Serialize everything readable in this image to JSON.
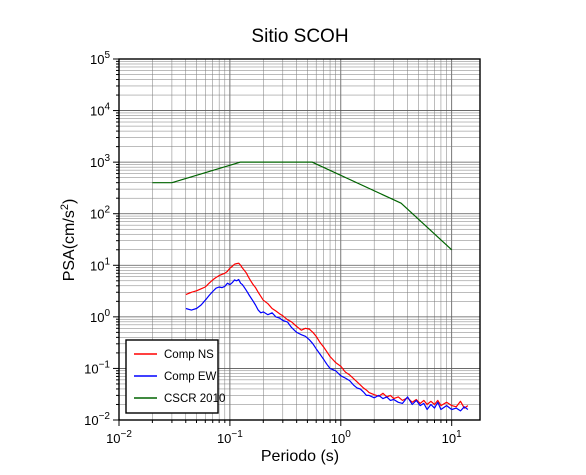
{
  "chart_data": {
    "type": "line",
    "title": "Sitio SCOH",
    "xlabel": "Periodo (s)",
    "ylabel_base": "PSA(cm/s",
    "ylabel_sup": "2",
    "ylabel_close": ")",
    "x_scale": "log",
    "y_scale": "log",
    "xlim": [
      0.01,
      18
    ],
    "ylim": [
      0.01,
      100000
    ],
    "x_ticks": [
      {
        "value": 0.01,
        "base": "10",
        "exp": "−2"
      },
      {
        "value": 0.1,
        "base": "10",
        "exp": "−1"
      },
      {
        "value": 1,
        "base": "10",
        "exp": "0"
      },
      {
        "value": 10,
        "base": "10",
        "exp": "1"
      }
    ],
    "y_ticks": [
      {
        "value": 0.01,
        "base": "10",
        "exp": "−2"
      },
      {
        "value": 0.1,
        "base": "10",
        "exp": "−1"
      },
      {
        "value": 1,
        "base": "10",
        "exp": "0"
      },
      {
        "value": 10,
        "base": "10",
        "exp": "1"
      },
      {
        "value": 100,
        "base": "10",
        "exp": "2"
      },
      {
        "value": 1000,
        "base": "10",
        "exp": "3"
      },
      {
        "value": 10000,
        "base": "10",
        "exp": "4"
      },
      {
        "value": 100000,
        "base": "10",
        "exp": "5"
      }
    ],
    "grid": true,
    "legend_position": "bottom-left",
    "series": [
      {
        "name": "Comp NS",
        "color": "#ff0000",
        "x": [
          0.04,
          0.045,
          0.05,
          0.055,
          0.06,
          0.065,
          0.07,
          0.075,
          0.08,
          0.085,
          0.09,
          0.095,
          0.1,
          0.105,
          0.11,
          0.115,
          0.12,
          0.125,
          0.13,
          0.14,
          0.15,
          0.16,
          0.17,
          0.18,
          0.19,
          0.2,
          0.22,
          0.24,
          0.26,
          0.28,
          0.3,
          0.33,
          0.36,
          0.4,
          0.44,
          0.48,
          0.52,
          0.56,
          0.6,
          0.65,
          0.7,
          0.75,
          0.8,
          0.9,
          1.0,
          1.1,
          1.2,
          1.3,
          1.4,
          1.5,
          1.6,
          1.7,
          1.8,
          2.0,
          2.2,
          2.4,
          2.6,
          2.8,
          3.0,
          3.3,
          3.6,
          4.0,
          4.4,
          4.8,
          5.2,
          5.6,
          6.0,
          6.5,
          7.0,
          7.5,
          8.0,
          9.0,
          10.0,
          11.0,
          12.0,
          13.0,
          14.0
        ],
        "y": [
          2.7,
          3.0,
          3.2,
          3.5,
          3.8,
          4.5,
          5.2,
          5.8,
          6.3,
          6.7,
          7.0,
          7.6,
          8.8,
          9.5,
          10.5,
          10.8,
          11.0,
          10.0,
          8.8,
          7.2,
          5.5,
          4.4,
          3.7,
          3.0,
          2.5,
          2.1,
          1.8,
          1.45,
          1.3,
          1.15,
          1.05,
          0.88,
          0.8,
          0.65,
          0.55,
          0.6,
          0.58,
          0.5,
          0.42,
          0.32,
          0.26,
          0.21,
          0.17,
          0.13,
          0.11,
          0.085,
          0.075,
          0.064,
          0.055,
          0.048,
          0.042,
          0.038,
          0.034,
          0.031,
          0.029,
          0.033,
          0.028,
          0.03,
          0.026,
          0.028,
          0.024,
          0.027,
          0.022,
          0.025,
          0.021,
          0.024,
          0.02,
          0.023,
          0.02,
          0.024,
          0.019,
          0.022,
          0.019,
          0.018,
          0.023,
          0.017,
          0.019
        ]
      },
      {
        "name": "Comp EW",
        "color": "#0000ff",
        "x": [
          0.04,
          0.045,
          0.05,
          0.055,
          0.06,
          0.065,
          0.07,
          0.075,
          0.08,
          0.085,
          0.09,
          0.095,
          0.1,
          0.105,
          0.11,
          0.115,
          0.12,
          0.125,
          0.13,
          0.14,
          0.15,
          0.16,
          0.17,
          0.18,
          0.19,
          0.2,
          0.22,
          0.24,
          0.26,
          0.28,
          0.3,
          0.33,
          0.36,
          0.4,
          0.44,
          0.48,
          0.52,
          0.56,
          0.6,
          0.65,
          0.7,
          0.75,
          0.8,
          0.9,
          1.0,
          1.1,
          1.2,
          1.3,
          1.4,
          1.5,
          1.6,
          1.7,
          1.8,
          2.0,
          2.2,
          2.4,
          2.6,
          2.8,
          3.0,
          3.3,
          3.6,
          4.0,
          4.4,
          4.8,
          5.2,
          5.6,
          6.0,
          6.5,
          7.0,
          7.5,
          8.0,
          9.0,
          10.0,
          11.0,
          12.0,
          13.0,
          14.0
        ],
        "y": [
          1.45,
          1.35,
          1.45,
          1.7,
          2.1,
          2.6,
          3.1,
          3.6,
          3.8,
          3.7,
          3.9,
          4.5,
          4.2,
          4.6,
          5.2,
          5.0,
          5.3,
          4.5,
          4.2,
          3.3,
          2.6,
          2.1,
          1.7,
          1.35,
          1.2,
          1.25,
          1.1,
          1.2,
          1.0,
          0.95,
          0.85,
          0.8,
          0.62,
          0.5,
          0.45,
          0.42,
          0.36,
          0.3,
          0.24,
          0.19,
          0.15,
          0.12,
          0.1,
          0.09,
          0.072,
          0.065,
          0.058,
          0.048,
          0.042,
          0.04,
          0.035,
          0.03,
          0.03,
          0.027,
          0.03,
          0.026,
          0.028,
          0.024,
          0.025,
          0.022,
          0.021,
          0.028,
          0.02,
          0.024,
          0.019,
          0.021,
          0.016,
          0.02,
          0.017,
          0.022,
          0.016,
          0.019,
          0.016,
          0.017,
          0.015,
          0.018,
          0.016
        ]
      },
      {
        "name": "CSCR 2010",
        "color": "#006400",
        "x": [
          0.02,
          0.03,
          0.125,
          0.55,
          3.5,
          10.0
        ],
        "y": [
          400,
          400,
          1000,
          1000,
          160,
          20
        ]
      }
    ]
  }
}
